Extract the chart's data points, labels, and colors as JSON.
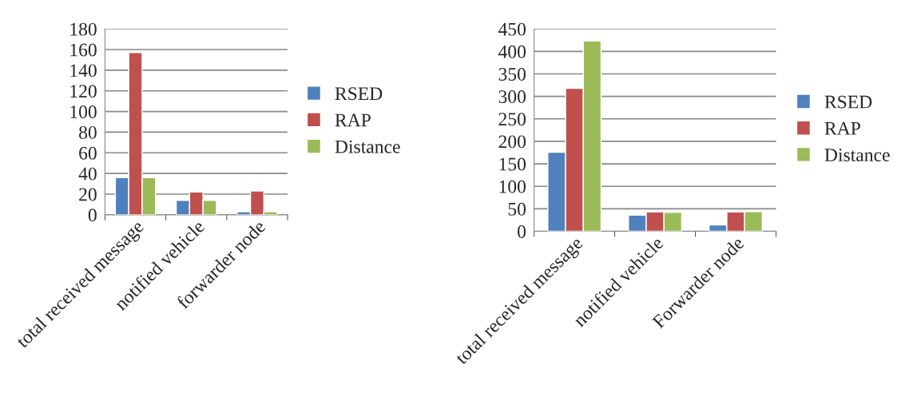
{
  "chart_data": [
    {
      "type": "bar",
      "categories": [
        "total received message",
        "notified vehicle",
        "forwarder node"
      ],
      "series": [
        {
          "name": "RSED",
          "color": "#4f81bd",
          "values": [
            36,
            14,
            3
          ]
        },
        {
          "name": "RAP",
          "color": "#c0504d",
          "values": [
            157,
            22,
            23
          ]
        },
        {
          "name": "Distance",
          "color": "#9bbb59",
          "values": [
            36,
            14,
            3
          ]
        }
      ],
      "ylim": [
        0,
        180
      ],
      "yticks": [
        0,
        20,
        40,
        60,
        80,
        100,
        120,
        140,
        160,
        180
      ],
      "grid": "y",
      "legend": "right"
    },
    {
      "type": "bar",
      "categories": [
        "total received message",
        "notified vehicle",
        "Forwarder node"
      ],
      "series": [
        {
          "name": "RSED",
          "color": "#4f81bd",
          "values": [
            176,
            36,
            14
          ]
        },
        {
          "name": "RAP",
          "color": "#c0504d",
          "values": [
            318,
            43,
            43
          ]
        },
        {
          "name": "Distance",
          "color": "#9bbb59",
          "values": [
            423,
            42,
            44
          ]
        }
      ],
      "ylim": [
        0,
        450
      ],
      "yticks": [
        0,
        50,
        100,
        150,
        200,
        250,
        300,
        350,
        400,
        450
      ],
      "grid": "y",
      "legend": "right"
    }
  ]
}
